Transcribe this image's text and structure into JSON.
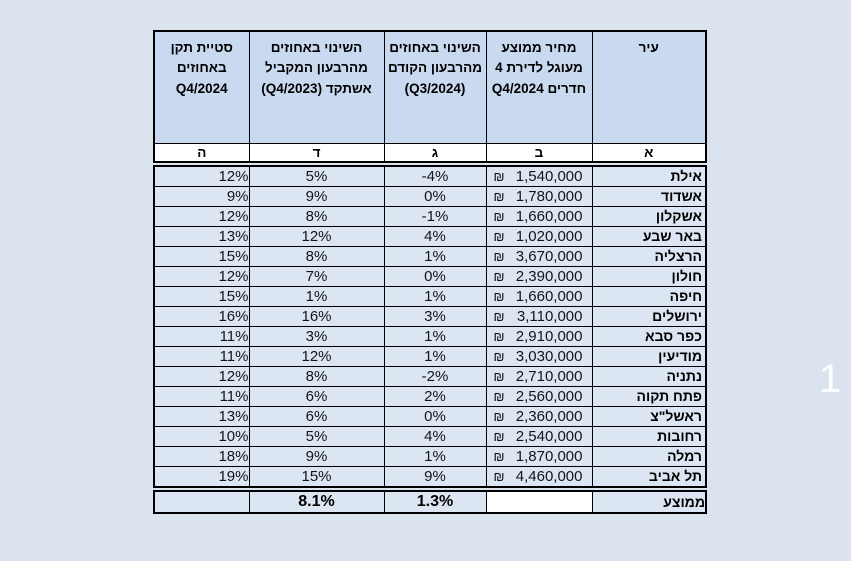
{
  "table": {
    "currency": "₪",
    "headers": {
      "city": "עיר",
      "price": "מחיר ממוצע מעוגל לדירת 4 חדרים Q4/2024",
      "qoq": "השינוי באחוזים מהרבעון הקודם (Q3/2024)",
      "yoy": "השינוי באחוזים מהרבעון המקביל אשתקד (Q4/2023)",
      "std": "סטיית תקן באחוזים Q4/2024"
    },
    "letters": [
      "א",
      "ב",
      "ג",
      "ד",
      "ה"
    ],
    "rows": [
      {
        "city": "אילת",
        "price": "1,540,000",
        "qoq": "-4%",
        "yoy": "5%",
        "std": "12%"
      },
      {
        "city": "אשדוד",
        "price": "1,780,000",
        "qoq": "0%",
        "yoy": "9%",
        "std": "9%"
      },
      {
        "city": "אשקלון",
        "price": "1,660,000",
        "qoq": "-1%",
        "yoy": "8%",
        "std": "12%"
      },
      {
        "city": "באר שבע",
        "price": "1,020,000",
        "qoq": "4%",
        "yoy": "12%",
        "std": "13%"
      },
      {
        "city": "הרצליה",
        "price": "3,670,000",
        "qoq": "1%",
        "yoy": "8%",
        "std": "15%"
      },
      {
        "city": "חולון",
        "price": "2,390,000",
        "qoq": "0%",
        "yoy": "7%",
        "std": "12%"
      },
      {
        "city": "חיפה",
        "price": "1,660,000",
        "qoq": "1%",
        "yoy": "1%",
        "std": "15%"
      },
      {
        "city": "ירושלים",
        "price": "3,110,000",
        "qoq": "3%",
        "yoy": "16%",
        "std": "16%"
      },
      {
        "city": "כפר סבא",
        "price": "2,910,000",
        "qoq": "1%",
        "yoy": "3%",
        "std": "11%"
      },
      {
        "city": "מודיעין",
        "price": "3,030,000",
        "qoq": "1%",
        "yoy": "12%",
        "std": "11%"
      },
      {
        "city": "נתניה",
        "price": "2,710,000",
        "qoq": "-2%",
        "yoy": "8%",
        "std": "12%"
      },
      {
        "city": "פתח תקוה",
        "price": "2,560,000",
        "qoq": "2%",
        "yoy": "6%",
        "std": "11%"
      },
      {
        "city": "ראשל\"צ",
        "price": "2,360,000",
        "qoq": "0%",
        "yoy": "6%",
        "std": "13%"
      },
      {
        "city": "רחובות",
        "price": "2,540,000",
        "qoq": "4%",
        "yoy": "5%",
        "std": "10%"
      },
      {
        "city": "רמלה",
        "price": "1,870,000",
        "qoq": "1%",
        "yoy": "9%",
        "std": "18%"
      },
      {
        "city": "תל אביב",
        "price": "4,460,000",
        "qoq": "9%",
        "yoy": "15%",
        "std": "19%"
      }
    ],
    "average": {
      "label": "ממוצע",
      "qoq": "1.3%",
      "yoy": "8.1%",
      "price": "",
      "std": ""
    }
  },
  "watermark": "1",
  "colors": {
    "page_background": "#dbe3ee",
    "header_fill": "#c9daf0",
    "cell_fill": "#dce6f3",
    "white_fill": "#ffffff",
    "border": "#000000"
  },
  "chart_data": {
    "type": "table",
    "title": "",
    "columns": [
      "עיר",
      "מחיר ממוצע מעוגל לדירת 4 חדרים Q4/2024 (₪)",
      "השינוי באחוזים מהרבעון הקודם (Q3/2024)",
      "השינוי באחוזים מהרבעון המקביל אשתקד (Q4/2023)",
      "סטיית תקן באחוזים Q4/2024"
    ],
    "column_letters": [
      "א",
      "ב",
      "ג",
      "ד",
      "ה"
    ],
    "rows": [
      [
        "אילת",
        1540000,
        -4,
        5,
        12
      ],
      [
        "אשדוד",
        1780000,
        0,
        9,
        9
      ],
      [
        "אשקלון",
        1660000,
        -1,
        8,
        12
      ],
      [
        "באר שבע",
        1020000,
        4,
        12,
        13
      ],
      [
        "הרצליה",
        3670000,
        1,
        8,
        15
      ],
      [
        "חולון",
        2390000,
        0,
        7,
        12
      ],
      [
        "חיפה",
        1660000,
        1,
        1,
        15
      ],
      [
        "ירושלים",
        3110000,
        3,
        16,
        16
      ],
      [
        "כפר סבא",
        2910000,
        1,
        3,
        11
      ],
      [
        "מודיעין",
        3030000,
        1,
        12,
        11
      ],
      [
        "נתניה",
        2710000,
        -2,
        8,
        12
      ],
      [
        "פתח תקוה",
        2560000,
        2,
        6,
        11
      ],
      [
        "ראשל\"צ",
        2360000,
        0,
        6,
        13
      ],
      [
        "רחובות",
        2540000,
        4,
        5,
        10
      ],
      [
        "רמלה",
        1870000,
        1,
        9,
        18
      ],
      [
        "תל אביב",
        4460000,
        9,
        15,
        19
      ]
    ],
    "average_row": {
      "label": "ממוצע",
      "qoq_pct": 1.3,
      "yoy_pct": 8.1
    }
  }
}
